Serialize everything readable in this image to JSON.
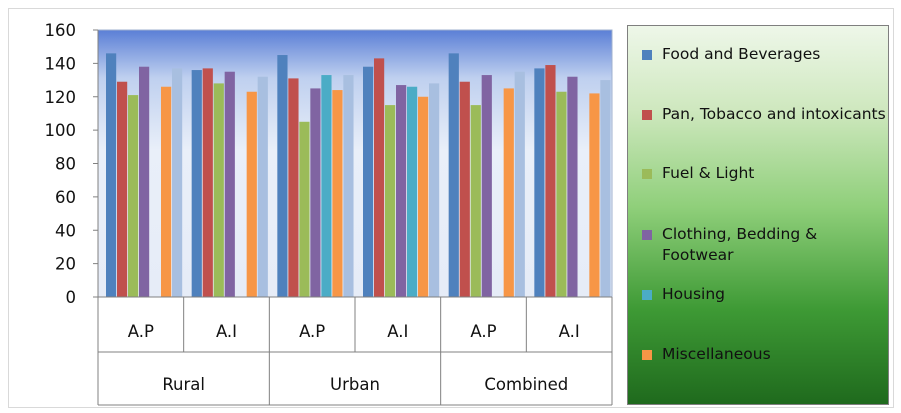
{
  "chart_data": {
    "type": "bar",
    "ylim": [
      0,
      160
    ],
    "yticks": [
      0,
      20,
      40,
      60,
      80,
      100,
      120,
      140,
      160
    ],
    "groups": [
      {
        "label": "Rural",
        "subcategories": [
          "A.P",
          "A.I"
        ]
      },
      {
        "label": "Urban",
        "subcategories": [
          "A.P",
          "A.I"
        ]
      },
      {
        "label": "Combined",
        "subcategories": [
          "A.P",
          "A.I"
        ]
      }
    ],
    "categories": [
      "Rural A.P",
      "Rural A.I",
      "Urban A.P",
      "Urban A.I",
      "Combined A.P",
      "Combined A.I"
    ],
    "series": [
      {
        "name": "Food and Beverages",
        "color": "#4f81bd",
        "values": [
          146,
          136,
          145,
          138,
          146,
          137
        ]
      },
      {
        "name": "Pan, Tobacco and intoxicants",
        "color": "#c0504d",
        "values": [
          129,
          137,
          131,
          143,
          129,
          139
        ]
      },
      {
        "name": "Fuel & Light",
        "color": "#9bbb59",
        "values": [
          121,
          128,
          105,
          115,
          115,
          123
        ]
      },
      {
        "name": "Clothing, Bedding & Footwear",
        "color": "#8064a2",
        "values": [
          138,
          135,
          125,
          127,
          133,
          132
        ]
      },
      {
        "name": "Housing",
        "color": "#4bacc6",
        "values": [
          null,
          null,
          133,
          126,
          null,
          null
        ]
      },
      {
        "name": "Miscellaneous",
        "color": "#f79646",
        "values": [
          126,
          123,
          124,
          120,
          125,
          122
        ]
      },
      {
        "name": "",
        "color": "#a8bfe0",
        "values": [
          137,
          132,
          133,
          128,
          135,
          130
        ]
      }
    ],
    "grid": false,
    "legend_position": "right"
  }
}
